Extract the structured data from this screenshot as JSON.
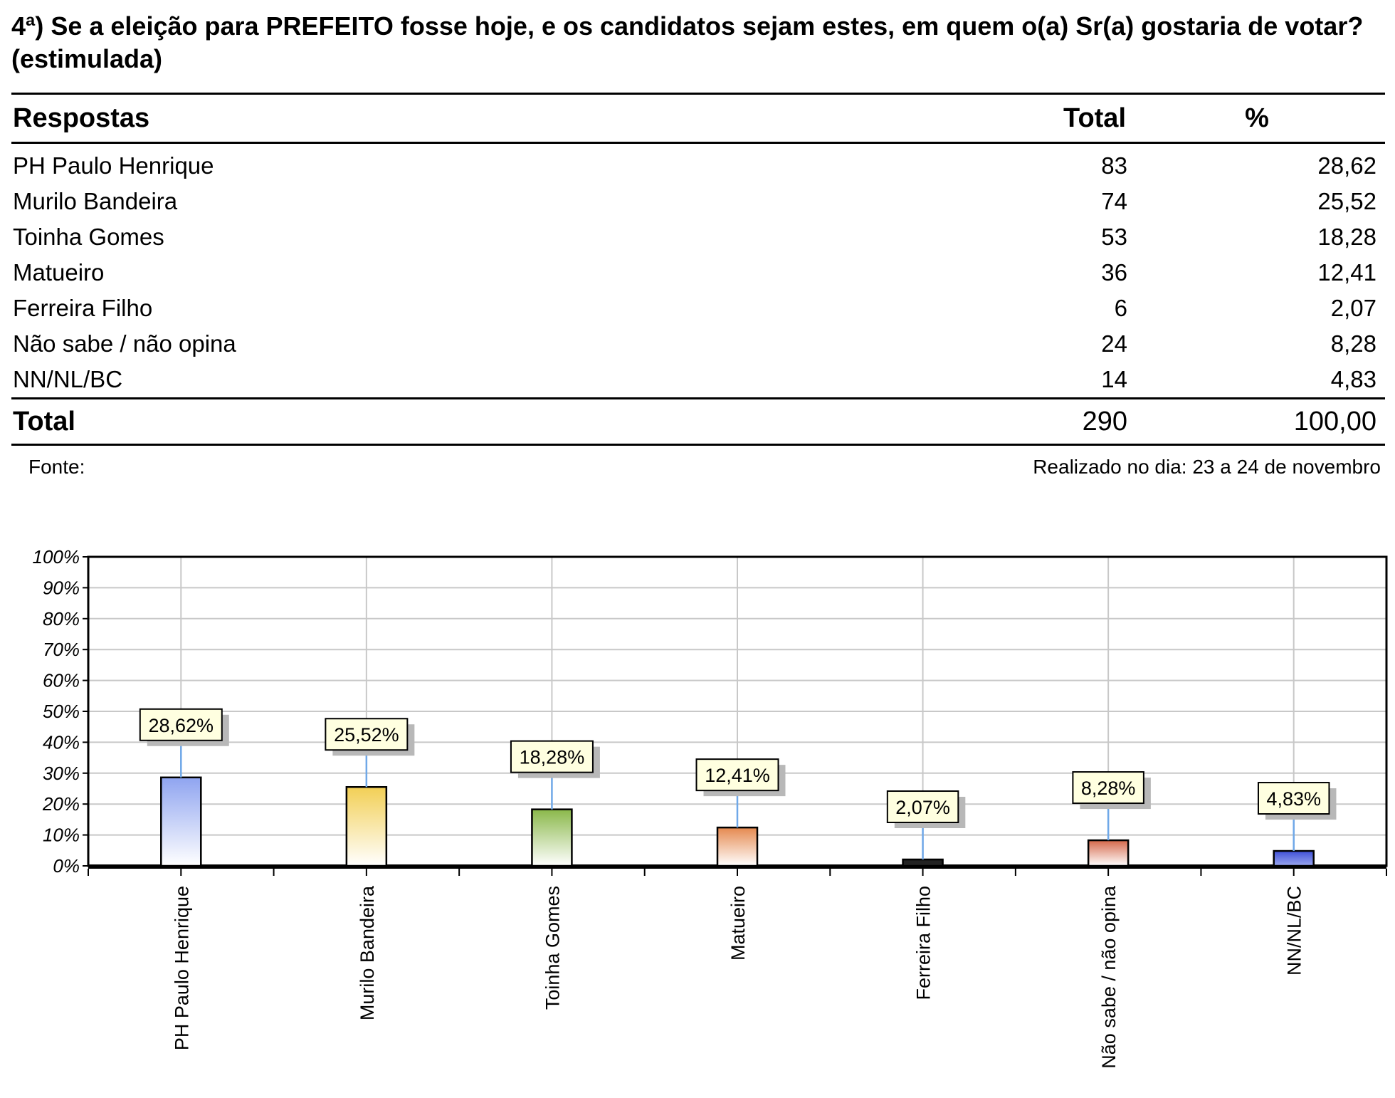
{
  "question": {
    "title": "4ª) Se a eleição para PREFEITO fosse hoje, e os candidatos sejam estes, em quem o(a) Sr(a) gostaria de votar? (estimulada)"
  },
  "table": {
    "headers": {
      "respostas": "Respostas",
      "total": "Total",
      "pct": "%"
    },
    "rows": [
      {
        "label": "PH Paulo Henrique",
        "total": "83",
        "pct": "28,62"
      },
      {
        "label": "Murilo Bandeira",
        "total": "74",
        "pct": "25,52"
      },
      {
        "label": "Toinha Gomes",
        "total": "53",
        "pct": "18,28"
      },
      {
        "label": "Matueiro",
        "total": "36",
        "pct": "12,41"
      },
      {
        "label": "Ferreira Filho",
        "total": "6",
        "pct": "2,07"
      },
      {
        "label": "Não sabe / não opina",
        "total": "24",
        "pct": "8,28"
      },
      {
        "label": "NN/NL/BC",
        "total": "14",
        "pct": "4,83"
      }
    ],
    "footer": {
      "label": "Total",
      "total": "290",
      "pct": "100,00"
    }
  },
  "footnotes": {
    "fonte": "Fonte:",
    "realizado": "Realizado no dia: 23 a 24 de novembro"
  },
  "chart_data": {
    "type": "bar",
    "categories": [
      "PH Paulo Henrique",
      "Murilo Bandeira",
      "Toinha Gomes",
      "Matueiro",
      "Ferreira Filho",
      "Não sabe / não opina",
      "NN/NL/BC"
    ],
    "values": [
      28.62,
      25.52,
      18.28,
      12.41,
      2.07,
      8.28,
      4.83
    ],
    "data_labels": [
      "28,62%",
      "25,52%",
      "18,28%",
      "12,41%",
      "2,07%",
      "8,28%",
      "4,83%"
    ],
    "ylim": [
      0,
      100
    ],
    "yticks": [
      "0%",
      "10%",
      "20%",
      "30%",
      "40%",
      "50%",
      "60%",
      "70%",
      "80%",
      "90%",
      "100%"
    ],
    "grid": true,
    "legend": "none",
    "bar_colors": [
      {
        "top": "#8fa4f0",
        "bottom": "#ffffff"
      },
      {
        "top": "#f2cf55",
        "bottom": "#ffffff"
      },
      {
        "top": "#8ab84a",
        "bottom": "#ffffff"
      },
      {
        "top": "#e5894f",
        "bottom": "#ffffff"
      },
      {
        "top": "#222222",
        "bottom": "#222222"
      },
      {
        "top": "#d5684a",
        "bottom": "#ffffff"
      },
      {
        "top": "#3f50d6",
        "bottom": "#9aa6ee"
      }
    ],
    "label_box_color": "#ffffe0",
    "leader_line_color": "#6fa8e8",
    "grid_color": "#c8c8c8"
  }
}
